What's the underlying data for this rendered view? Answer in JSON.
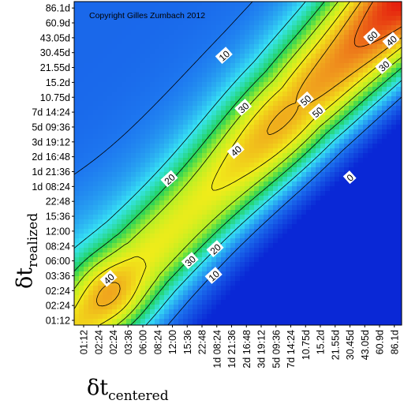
{
  "chart_data": {
    "type": "heatmap",
    "title": "",
    "copyright": "Copyright Gilles Zumbach 2012",
    "xlabel": {
      "symbol": "δt",
      "subscript": "centered"
    },
    "ylabel": {
      "symbol": "δt",
      "subscript": "realized"
    },
    "x_ticks": [
      "01:12",
      "02:24",
      "02:24",
      "03:36",
      "06:00",
      "08:24",
      "12:00",
      "15:36",
      "22:48",
      "1d 08:24",
      "1d 21:36",
      "2d 16:48",
      "3d 19:12",
      "5d 09:36",
      "7d 14:24",
      "10.75d",
      "15.2d",
      "21.55d",
      "30.45d",
      "43.05d",
      "60.9d",
      "86.1d"
    ],
    "y_ticks": [
      "86.1d",
      "60.9d",
      "43.05d",
      "30.45d",
      "21.55d",
      "15.2d",
      "10.75d",
      "7d 14:24",
      "5d 09:36",
      "3d 19:12",
      "2d 16:48",
      "1d 21:36",
      "1d 08:24",
      "22:48",
      "15:36",
      "12:00",
      "08:24",
      "06:00",
      "03:36",
      "02:24",
      "02:24",
      "01:12"
    ],
    "contour_levels": [
      0,
      10,
      20,
      30,
      40,
      50,
      60
    ],
    "contour_labels": [
      {
        "text": "10",
        "x": 9.5,
        "y": 17.8
      },
      {
        "text": "30",
        "x": 10.8,
        "y": 14.3
      },
      {
        "text": "20",
        "x": 5.8,
        "y": 9.5
      },
      {
        "text": "40",
        "x": 10.3,
        "y": 11.4
      },
      {
        "text": "50",
        "x": 15.0,
        "y": 14.8
      },
      {
        "text": "50",
        "x": 15.8,
        "y": 14.0
      },
      {
        "text": "60",
        "x": 19.5,
        "y": 19.1
      },
      {
        "text": "40",
        "x": 20.8,
        "y": 18.8
      },
      {
        "text": "30",
        "x": 20.3,
        "y": 17.1
      },
      {
        "text": "0",
        "x": 18.0,
        "y": 9.6
      },
      {
        "text": "20",
        "x": 8.9,
        "y": 4.8
      },
      {
        "text": "30",
        "x": 7.2,
        "y": 4.0
      },
      {
        "text": "10",
        "x": 8.8,
        "y": 3.0
      },
      {
        "text": "40",
        "x": 1.7,
        "y": 2.8
      }
    ],
    "colormap": [
      "#0a28d6",
      "#1e78f0",
      "#38e6f4",
      "#22d25a",
      "#b4f026",
      "#f2ec1a",
      "#f0961e",
      "#e6200e"
    ],
    "grid": false,
    "legend": "none"
  }
}
